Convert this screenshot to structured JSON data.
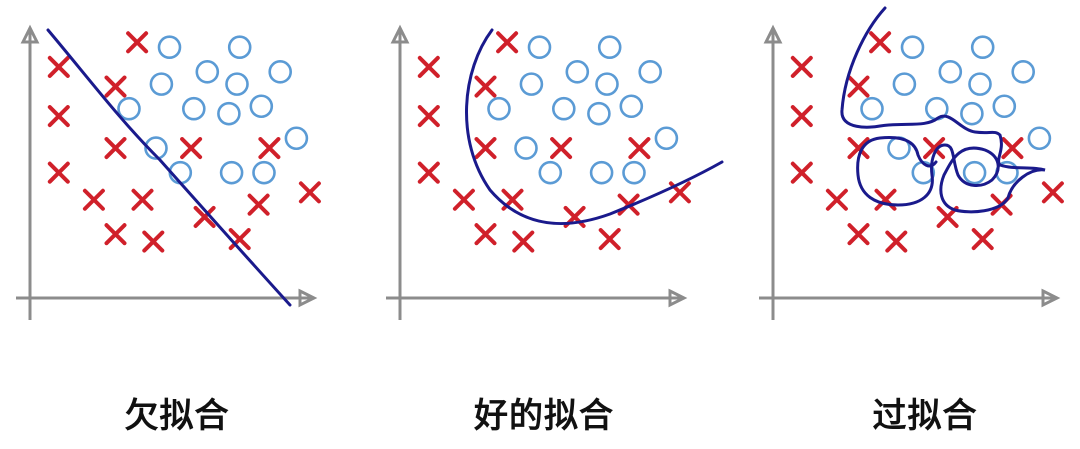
{
  "colors": {
    "axis": "#8c8c8c",
    "boundary": "#1a1a8c",
    "cross": "#d0202a",
    "circle": "#5b9bd5"
  },
  "panels": [
    {
      "caption": "欠拟合",
      "boundary_type": "straight-line",
      "crosses": [
        [
          0.04,
          0.85
        ],
        [
          0.33,
          0.95
        ],
        [
          0.25,
          0.77
        ],
        [
          0.04,
          0.65
        ],
        [
          0.25,
          0.52
        ],
        [
          0.04,
          0.42
        ],
        [
          0.17,
          0.31
        ],
        [
          0.35,
          0.31
        ],
        [
          0.53,
          0.52
        ],
        [
          0.82,
          0.52
        ],
        [
          0.58,
          0.24
        ],
        [
          0.78,
          0.29
        ],
        [
          0.97,
          0.34
        ],
        [
          0.25,
          0.17
        ],
        [
          0.39,
          0.14
        ],
        [
          0.71,
          0.15
        ]
      ],
      "circles": [
        [
          0.45,
          0.93
        ],
        [
          0.71,
          0.93
        ],
        [
          0.59,
          0.83
        ],
        [
          0.86,
          0.83
        ],
        [
          0.42,
          0.78
        ],
        [
          0.7,
          0.78
        ],
        [
          0.3,
          0.68
        ],
        [
          0.54,
          0.68
        ],
        [
          0.67,
          0.66
        ],
        [
          0.79,
          0.69
        ],
        [
          0.4,
          0.52
        ],
        [
          0.92,
          0.56
        ],
        [
          0.49,
          0.42
        ],
        [
          0.68,
          0.42
        ],
        [
          0.8,
          0.42
        ]
      ],
      "icons": {
        "cross": "cross-icon",
        "circle": "circle-icon"
      }
    },
    {
      "caption": "好的拟合",
      "boundary_type": "smooth-curve",
      "crosses": [
        [
          0.04,
          0.85
        ],
        [
          0.33,
          0.95
        ],
        [
          0.25,
          0.77
        ],
        [
          0.04,
          0.65
        ],
        [
          0.25,
          0.52
        ],
        [
          0.04,
          0.42
        ],
        [
          0.17,
          0.31
        ],
        [
          0.35,
          0.31
        ],
        [
          0.53,
          0.52
        ],
        [
          0.82,
          0.52
        ],
        [
          0.58,
          0.24
        ],
        [
          0.78,
          0.29
        ],
        [
          0.97,
          0.34
        ],
        [
          0.25,
          0.17
        ],
        [
          0.39,
          0.14
        ],
        [
          0.71,
          0.15
        ]
      ],
      "circles": [
        [
          0.45,
          0.93
        ],
        [
          0.71,
          0.93
        ],
        [
          0.59,
          0.83
        ],
        [
          0.86,
          0.83
        ],
        [
          0.42,
          0.78
        ],
        [
          0.7,
          0.78
        ],
        [
          0.3,
          0.68
        ],
        [
          0.54,
          0.68
        ],
        [
          0.67,
          0.66
        ],
        [
          0.79,
          0.69
        ],
        [
          0.4,
          0.52
        ],
        [
          0.92,
          0.56
        ],
        [
          0.49,
          0.42
        ],
        [
          0.68,
          0.42
        ],
        [
          0.8,
          0.42
        ]
      ],
      "icons": {
        "cross": "cross-icon",
        "circle": "circle-icon"
      }
    },
    {
      "caption": "过拟合",
      "boundary_type": "wiggly-curve",
      "crosses": [
        [
          0.04,
          0.85
        ],
        [
          0.33,
          0.95
        ],
        [
          0.25,
          0.77
        ],
        [
          0.04,
          0.65
        ],
        [
          0.25,
          0.52
        ],
        [
          0.04,
          0.42
        ],
        [
          0.17,
          0.31
        ],
        [
          0.35,
          0.31
        ],
        [
          0.53,
          0.52
        ],
        [
          0.82,
          0.52
        ],
        [
          0.58,
          0.24
        ],
        [
          0.78,
          0.29
        ],
        [
          0.97,
          0.34
        ],
        [
          0.25,
          0.17
        ],
        [
          0.39,
          0.14
        ],
        [
          0.71,
          0.15
        ]
      ],
      "circles": [
        [
          0.45,
          0.93
        ],
        [
          0.71,
          0.93
        ],
        [
          0.59,
          0.83
        ],
        [
          0.86,
          0.83
        ],
        [
          0.42,
          0.78
        ],
        [
          0.7,
          0.78
        ],
        [
          0.3,
          0.68
        ],
        [
          0.54,
          0.68
        ],
        [
          0.67,
          0.66
        ],
        [
          0.79,
          0.69
        ],
        [
          0.4,
          0.52
        ],
        [
          0.92,
          0.56
        ],
        [
          0.49,
          0.42
        ],
        [
          0.68,
          0.42
        ],
        [
          0.8,
          0.42
        ]
      ],
      "icons": {
        "cross": "cross-icon",
        "circle": "circle-icon"
      }
    }
  ]
}
